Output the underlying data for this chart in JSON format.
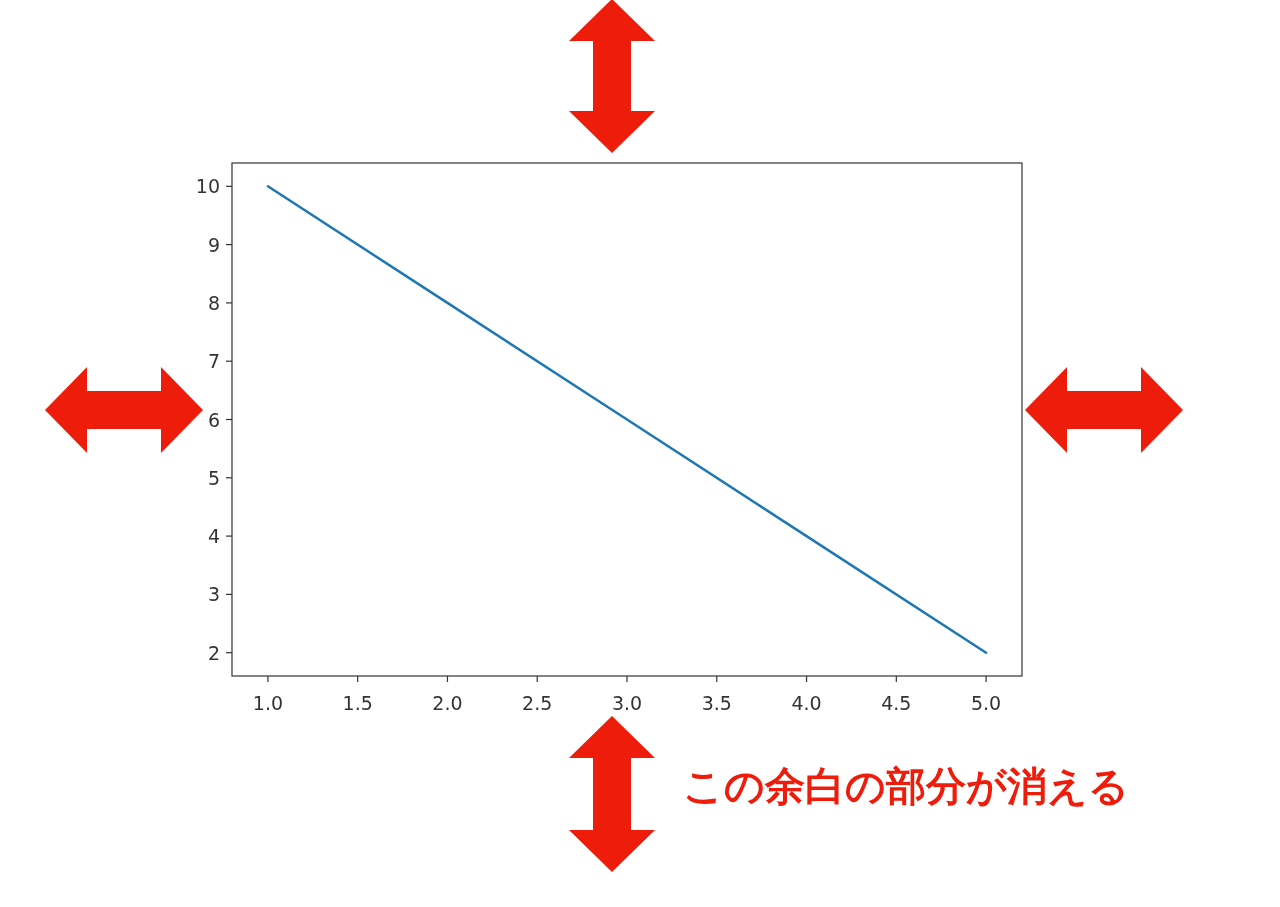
{
  "chart_data": {
    "type": "line",
    "x": [
      1,
      2,
      3,
      4,
      5
    ],
    "series": [
      {
        "color": "#1f77b4",
        "values": [
          10,
          8,
          6,
          4,
          2
        ]
      }
    ],
    "xlim": [
      0.8,
      5.2
    ],
    "ylim": [
      1.6,
      10.4
    ],
    "xticks": [
      {
        "value": 1,
        "label": "1.0"
      },
      {
        "value": 1.5,
        "label": "1.5"
      },
      {
        "value": 2,
        "label": "2.0"
      },
      {
        "value": 2.5,
        "label": "2.5"
      },
      {
        "value": 3,
        "label": "3.0"
      },
      {
        "value": 3.5,
        "label": "3.5"
      },
      {
        "value": 4,
        "label": "4.0"
      },
      {
        "value": 4.5,
        "label": "4.5"
      },
      {
        "value": 5,
        "label": "5.0"
      }
    ],
    "yticks": [
      2,
      3,
      4,
      5,
      6,
      7,
      8,
      9,
      10
    ],
    "annotations": [
      "この余白の部分が消える"
    ]
  }
}
